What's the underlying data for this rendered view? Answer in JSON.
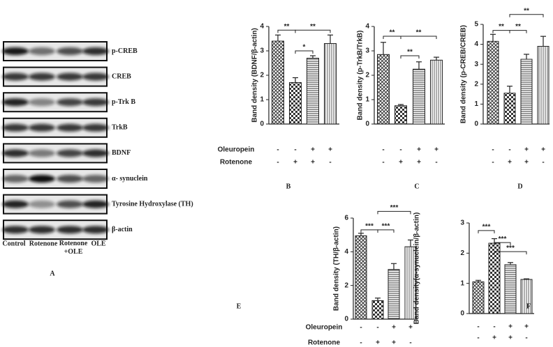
{
  "blot": {
    "proteins": [
      "p-CREB",
      "CREB",
      "p-Trk B",
      "TrkB",
      "BDNF",
      "α- synuclein",
      "Tyrosine Hydroxylase (TH)",
      "β-actin"
    ],
    "lanes": [
      "Control",
      "Rotenone",
      "Rotenone +OLE",
      "OLE"
    ],
    "panel_label": "A"
  },
  "chart_data": [
    {
      "type": "bar",
      "panel_label": "B",
      "ylabel": "Band density (BDNF/β-actin)",
      "categories": [
        null,
        null,
        null,
        null
      ],
      "values": [
        3.4,
        1.7,
        2.7,
        3.3
      ],
      "errors": [
        0.25,
        0.2,
        0.1,
        0.35
      ],
      "ylim": [
        0,
        4
      ],
      "yticks": [
        0,
        1,
        2,
        3,
        4
      ],
      "bar_patterns": [
        "crosshatch",
        "checker",
        "horizontal",
        "vertical"
      ],
      "brackets": [
        {
          "from": 0,
          "to": 1,
          "y": 3.85,
          "label": "**"
        },
        {
          "from": 1,
          "to": 3,
          "y": 3.85,
          "label": "**"
        },
        {
          "from": 1,
          "to": 2,
          "y": 3.0,
          "label": "*"
        }
      ],
      "treatments": [
        {
          "name": "Oleuropein",
          "signs": [
            "-",
            "-",
            "+",
            "+"
          ]
        },
        {
          "name": "Rotenone",
          "signs": [
            "-",
            "+",
            "+",
            "-"
          ]
        }
      ]
    },
    {
      "type": "bar",
      "panel_label": "C",
      "ylabel": "Band density (p-TrkB/TrkB)",
      "categories": [
        null,
        null,
        null,
        null
      ],
      "values": [
        2.85,
        0.75,
        2.25,
        2.62
      ],
      "errors": [
        0.5,
        0.05,
        0.3,
        0.12
      ],
      "ylim": [
        0,
        4
      ],
      "yticks": [
        0,
        1,
        2,
        3,
        4
      ],
      "bar_patterns": [
        "crosshatch",
        "checker",
        "horizontal",
        "vertical"
      ],
      "brackets": [
        {
          "from": 0,
          "to": 1,
          "y": 3.6,
          "label": "**"
        },
        {
          "from": 1,
          "to": 3,
          "y": 3.6,
          "label": "**"
        },
        {
          "from": 1,
          "to": 2,
          "y": 2.8,
          "label": "**"
        }
      ],
      "treatments": [
        {
          "signs": [
            "-",
            "-",
            "+",
            "+"
          ]
        },
        {
          "signs": [
            "-",
            "+",
            "+",
            "-"
          ]
        }
      ]
    },
    {
      "type": "bar",
      "panel_label": "D",
      "ylabel": "Band density (p-CREB/CREB)",
      "categories": [
        null,
        null,
        null,
        null
      ],
      "values": [
        4.15,
        1.55,
        3.25,
        3.9
      ],
      "errors": [
        0.35,
        0.35,
        0.25,
        0.5
      ],
      "ylim": [
        0,
        5
      ],
      "yticks": [
        0,
        1,
        2,
        3,
        4,
        5
      ],
      "bar_patterns": [
        "crosshatch",
        "checker",
        "horizontal",
        "vertical"
      ],
      "brackets": [
        {
          "from": 0,
          "to": 1,
          "y": 4.7,
          "label": "**"
        },
        {
          "from": 1,
          "to": 2,
          "y": 4.7,
          "label": "**"
        },
        {
          "from": 1,
          "to": 3,
          "y": 5.5,
          "label": "**"
        }
      ],
      "treatments": [
        {
          "signs": [
            "-",
            "-",
            "+",
            "+"
          ]
        },
        {
          "signs": [
            "-",
            "+",
            "+",
            "-"
          ]
        }
      ]
    },
    {
      "type": "bar",
      "panel_label": "E",
      "ylabel": "Band density (TH/β-actin)",
      "categories": [
        null,
        null,
        null,
        null
      ],
      "values": [
        4.95,
        1.1,
        2.95,
        4.3
      ],
      "errors": [
        0.15,
        0.15,
        0.35,
        0.4
      ],
      "ylim": [
        0,
        6
      ],
      "yticks": [
        0,
        2,
        4,
        6
      ],
      "bar_patterns": [
        "crosshatch",
        "checker",
        "horizontal",
        "vertical"
      ],
      "brackets": [
        {
          "from": 0,
          "to": 1,
          "y": 5.3,
          "label": "***"
        },
        {
          "from": 1,
          "to": 2,
          "y": 5.3,
          "label": "***"
        },
        {
          "from": 1,
          "to": 3,
          "y": 6.4,
          "label": "***"
        }
      ],
      "treatments": [
        {
          "name": "Oleuropein",
          "signs": [
            "-",
            "-",
            "+",
            "+"
          ]
        },
        {
          "name": "Rotenone",
          "signs": [
            "-",
            "+",
            "+",
            "-"
          ]
        }
      ]
    },
    {
      "type": "bar",
      "panel_label": "F",
      "ylabel": "Band density(α-synuclein/β-actin)",
      "categories": [
        null,
        null,
        null,
        null
      ],
      "values": [
        1.05,
        2.33,
        1.62,
        1.13
      ],
      "errors": [
        0.05,
        0.15,
        0.07,
        0.02
      ],
      "ylim": [
        0,
        3
      ],
      "yticks": [
        0,
        1,
        2,
        3
      ],
      "bar_patterns": [
        "crosshatch",
        "checker",
        "horizontal",
        "vertical"
      ],
      "brackets": [
        {
          "from": 0,
          "to": 1,
          "y": 2.75,
          "label": "***"
        },
        {
          "from": 1,
          "to": 2,
          "y": 2.35,
          "label": "***"
        },
        {
          "from": 1,
          "to": 3,
          "y": 2.05,
          "label": "***"
        }
      ],
      "treatments": [
        {
          "signs": [
            "-",
            "-",
            "+",
            "+"
          ]
        },
        {
          "signs": [
            "-",
            "+",
            "+",
            "-"
          ]
        }
      ]
    }
  ]
}
